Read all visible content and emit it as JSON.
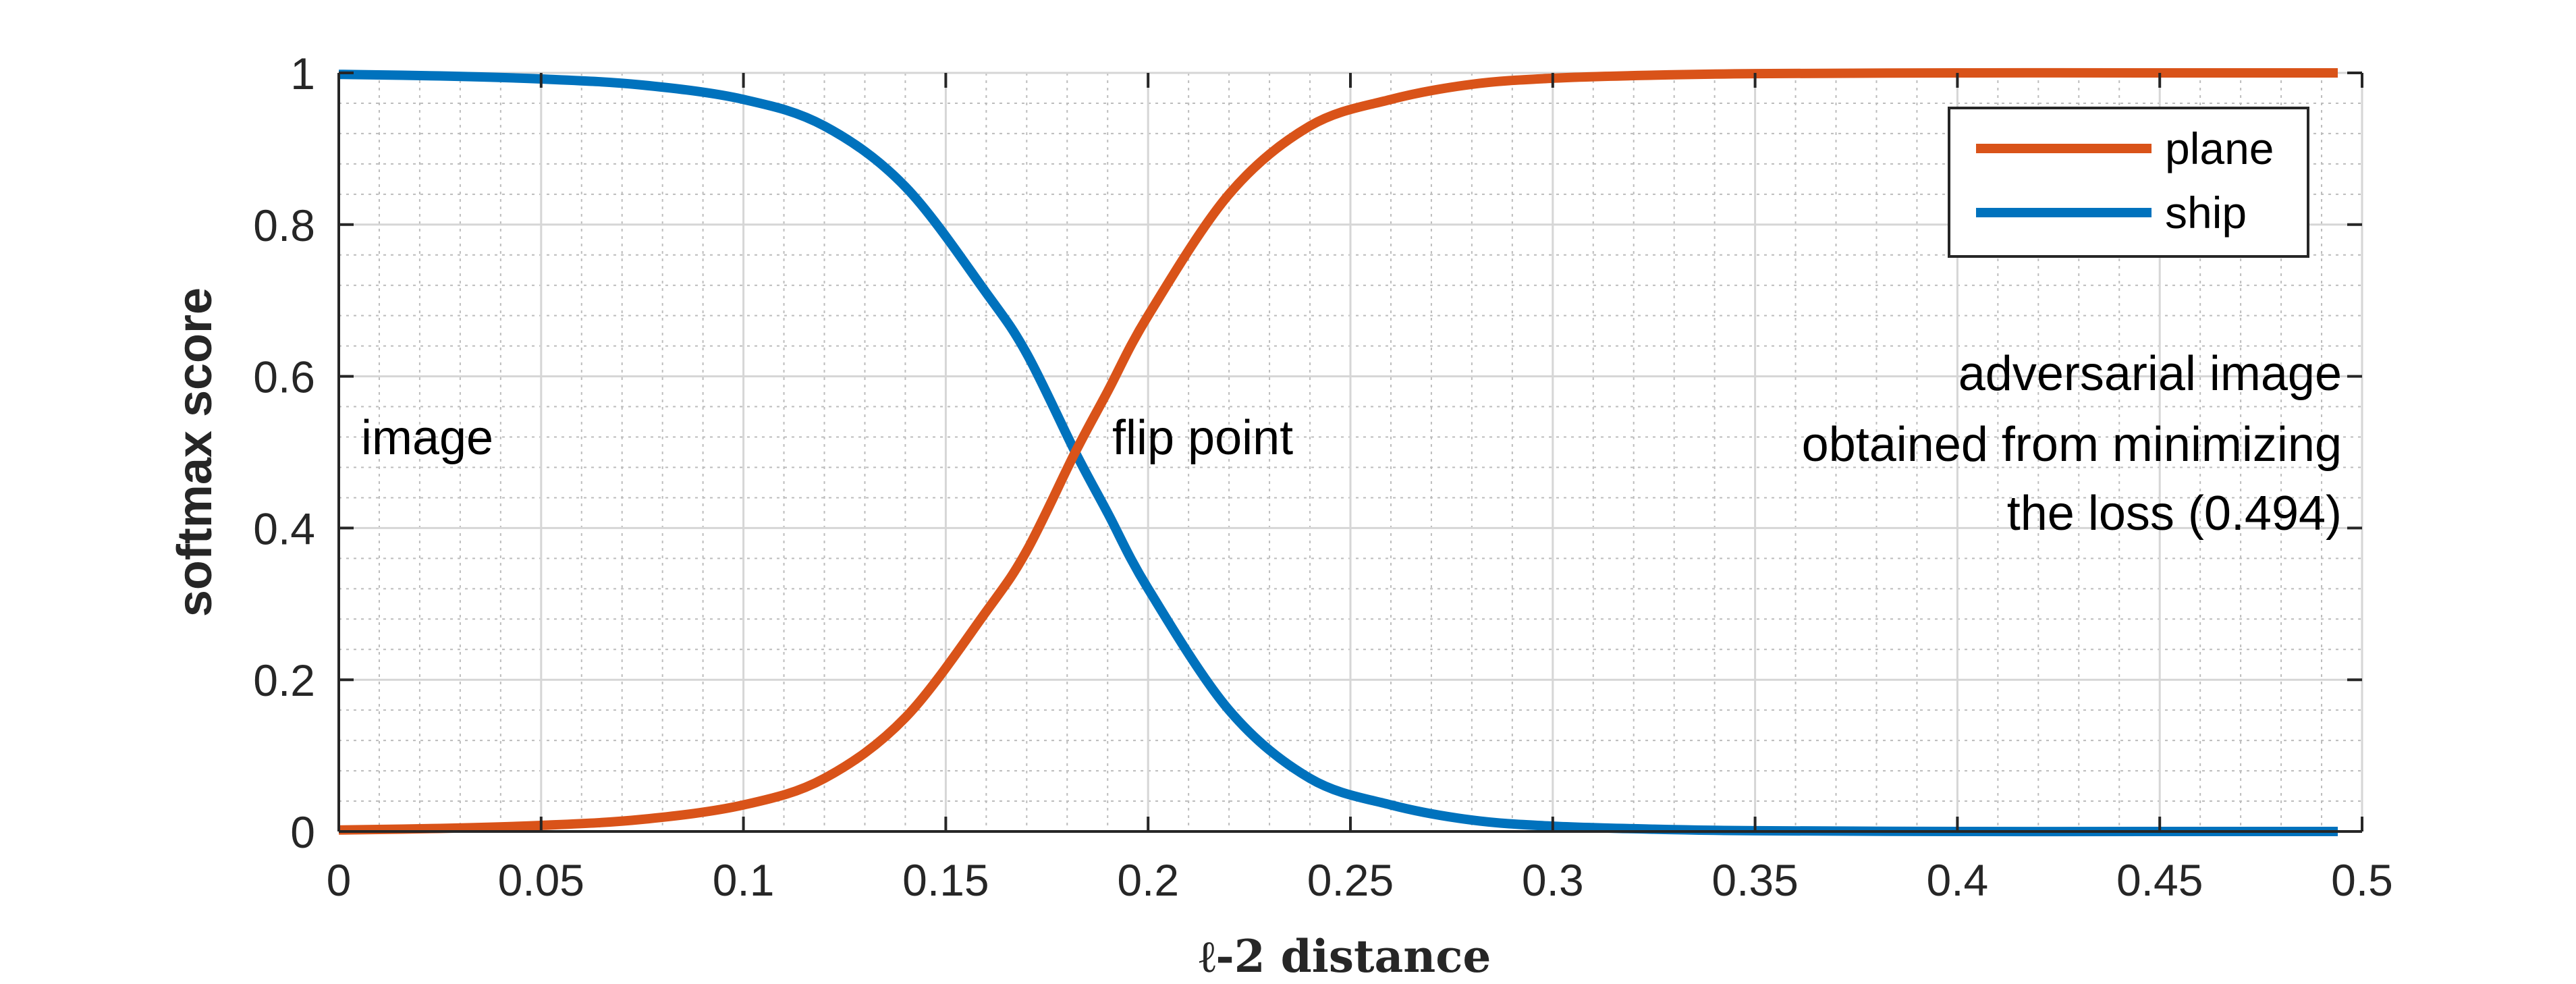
{
  "chart_data": {
    "type": "line",
    "xlabel": "ℓ-2 distance",
    "ylabel": "softmax score",
    "xlim": [
      0,
      0.5
    ],
    "ylim": [
      0,
      1
    ],
    "x_ticks": [
      "0",
      "0.05",
      "0.1",
      "0.15",
      "0.2",
      "0.25",
      "0.3",
      "0.35",
      "0.4",
      "0.45",
      "0.5"
    ],
    "y_ticks": [
      "0",
      "0.2",
      "0.4",
      "0.6",
      "0.8",
      "1"
    ],
    "grid": true,
    "minor_grid": true,
    "legend_position": "top-right",
    "x": [
      0,
      0.025,
      0.05,
      0.075,
      0.1,
      0.12,
      0.14,
      0.16,
      0.17,
      0.182,
      0.19,
      0.2,
      0.22,
      0.24,
      0.26,
      0.28,
      0.3,
      0.325,
      0.35,
      0.4,
      0.45,
      0.494
    ],
    "series": [
      {
        "name": "plane",
        "color": "#D95319",
        "values": [
          0.002,
          0.004,
          0.008,
          0.016,
          0.035,
          0.07,
          0.15,
          0.29,
          0.37,
          0.5,
          0.58,
          0.68,
          0.84,
          0.93,
          0.965,
          0.985,
          0.993,
          0.997,
          0.999,
          1.0,
          1.0,
          1.0
        ]
      },
      {
        "name": "ship",
        "color": "#0072BD",
        "values": [
          0.998,
          0.996,
          0.992,
          0.984,
          0.965,
          0.93,
          0.85,
          0.71,
          0.63,
          0.5,
          0.42,
          0.32,
          0.16,
          0.07,
          0.035,
          0.015,
          0.007,
          0.003,
          0.001,
          0.0,
          0.0,
          0.0
        ]
      }
    ],
    "annotations": {
      "left": "image",
      "middle": "flip point",
      "right_line1": "adversarial image",
      "right_line2": "obtained from minimizing",
      "right_line3": "the loss (0.494)"
    }
  }
}
